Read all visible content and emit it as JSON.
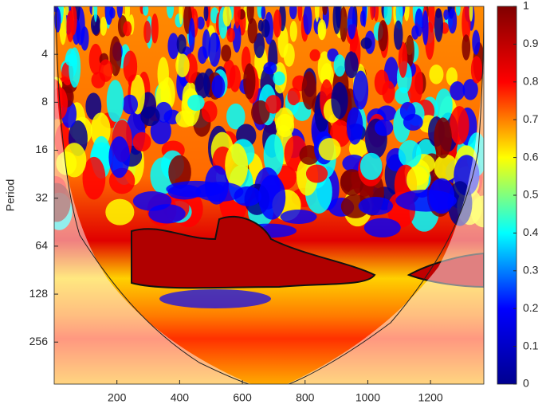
{
  "chart_data": {
    "type": "heatmap",
    "ylabel": "Period",
    "xlim": [
      0,
      1370
    ],
    "xticks": [
      200,
      400,
      600,
      800,
      1000,
      1200
    ],
    "ylim": [
      2,
      470
    ],
    "yticks": [
      4,
      8,
      16,
      32,
      64,
      128,
      256
    ],
    "y_log_base": 2,
    "y_reversed": true,
    "clim": [
      0,
      1
    ],
    "cticks": [
      0,
      0.1,
      0.2,
      0.3,
      0.4,
      0.5,
      0.6,
      0.7,
      0.8,
      0.9,
      1
    ],
    "colormap": [
      "#00008f",
      "#0000ff",
      "#00ffff",
      "#ffff00",
      "#ff0000",
      "#800000"
    ]
  }
}
